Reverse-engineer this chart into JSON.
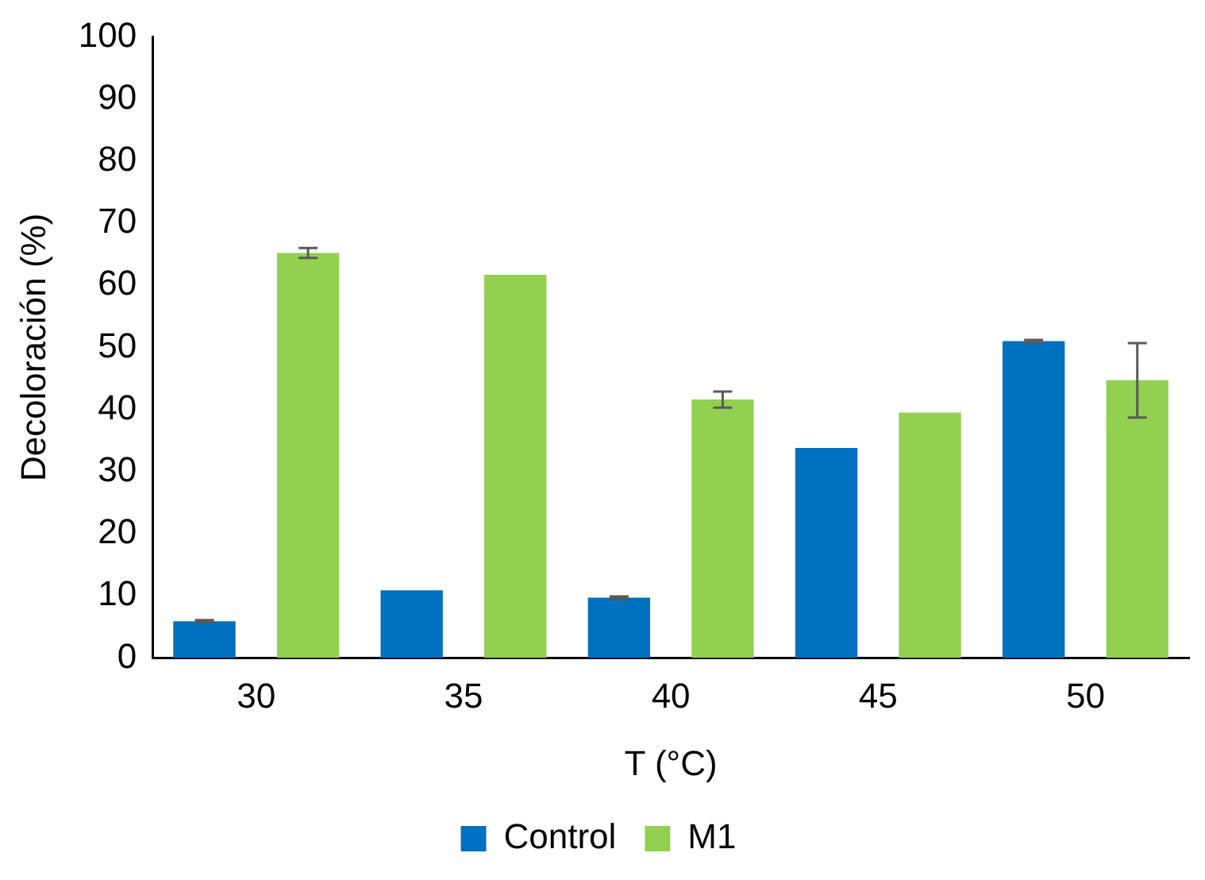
{
  "chart_data": {
    "type": "bar",
    "xlabel": "T (°C)",
    "ylabel": "Decoloración (%)",
    "categories": [
      "30",
      "35",
      "40",
      "45",
      "50"
    ],
    "series": [
      {
        "name": "Control",
        "color": "#0070c0",
        "values": [
          5.9,
          10.9,
          9.7,
          33.8,
          51
        ],
        "errors": [
          0.2,
          null,
          0.2,
          null,
          0.2
        ]
      },
      {
        "name": "M1",
        "color": "#92d050",
        "values": [
          65.2,
          61.7,
          41.6,
          39.5,
          44.7
        ],
        "errors": [
          0.8,
          null,
          1.3,
          null,
          6
        ]
      }
    ],
    "ylim": [
      0,
      100
    ],
    "yticks": [
      0,
      10,
      20,
      30,
      40,
      50,
      60,
      70,
      80,
      90,
      100
    ],
    "grid": false,
    "legend": "bottom"
  }
}
